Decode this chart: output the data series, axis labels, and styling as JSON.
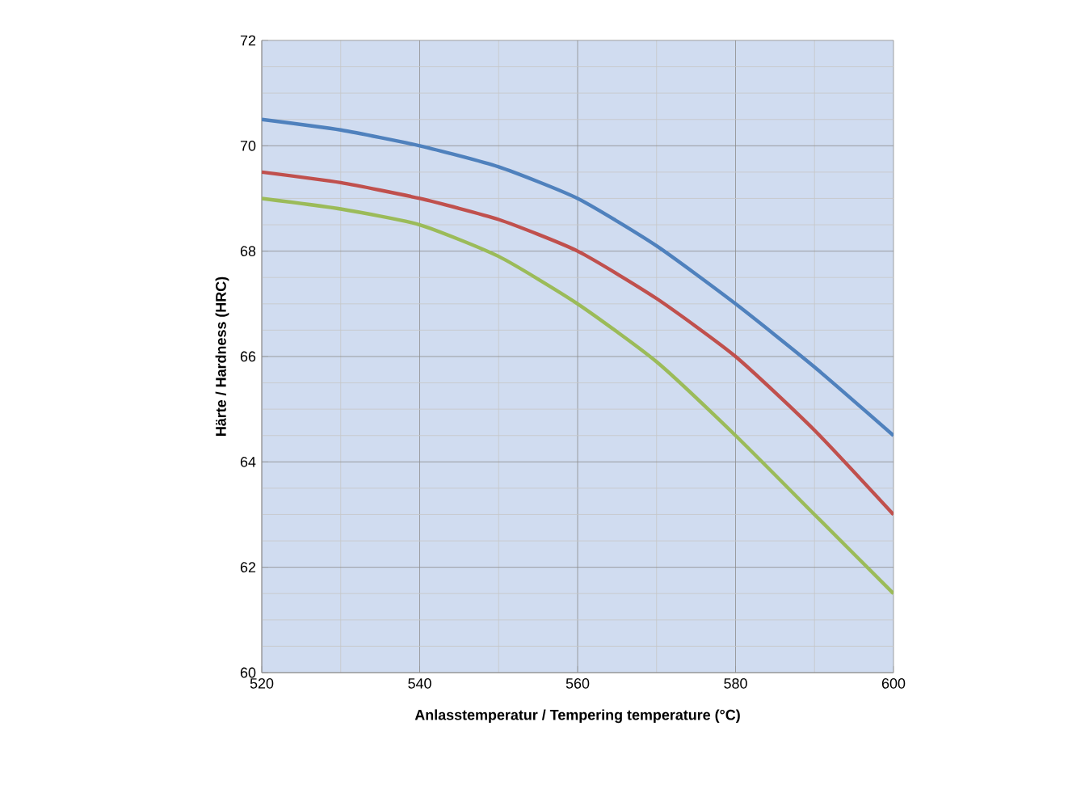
{
  "chart_data": {
    "type": "line",
    "xlabel": "Anlasstemperatur / Tempering temperature (°C)",
    "ylabel": "Härte / Hardness (HRC)",
    "x": [
      520,
      530,
      540,
      550,
      560,
      570,
      580,
      590,
      600
    ],
    "series": [
      {
        "color": "#4f81bd",
        "values": [
          70.5,
          70.3,
          70.0,
          69.6,
          69.0,
          68.1,
          67.0,
          65.8,
          64.5
        ]
      },
      {
        "color": "#c0504d",
        "values": [
          69.5,
          69.3,
          69.0,
          68.6,
          68.0,
          67.1,
          66.0,
          64.6,
          63.0
        ]
      },
      {
        "color": "#9bbb59",
        "values": [
          69.0,
          68.8,
          68.5,
          67.9,
          67.0,
          65.9,
          64.5,
          63.0,
          61.5
        ]
      }
    ],
    "xlim": [
      520,
      600
    ],
    "xticks": [
      520,
      540,
      560,
      580,
      600
    ],
    "ylim": [
      60,
      72
    ],
    "yticks": [
      60,
      62,
      64,
      66,
      68,
      70,
      72
    ],
    "grid": true,
    "marker": "none",
    "line_style": "solid"
  }
}
